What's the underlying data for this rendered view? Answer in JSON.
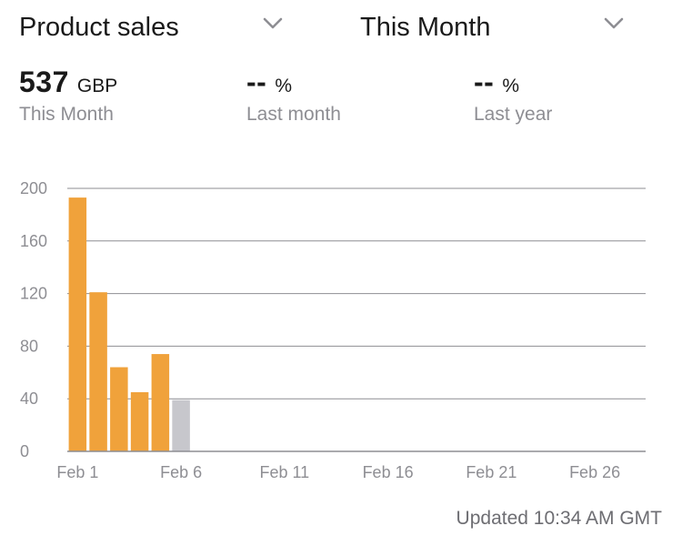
{
  "header": {
    "metric_selector": {
      "label": "Product sales",
      "icon": "chevron-down-icon"
    },
    "period_selector": {
      "label": "This Month",
      "icon": "chevron-down-icon"
    }
  },
  "summary": {
    "this_month": {
      "value": "537",
      "unit": "GBP",
      "caption": "This Month"
    },
    "last_month": {
      "value": "--",
      "unit": "%",
      "caption": "Last month"
    },
    "last_year": {
      "value": "--",
      "unit": "%",
      "caption": "Last year"
    }
  },
  "footer": {
    "updated": "Updated 10:34 AM GMT"
  },
  "colors": {
    "bar": "#f0a23b",
    "bar_current": "#c7c7cc",
    "grid": "#8e8e93",
    "text_secondary": "#8e8e93"
  },
  "chart_data": {
    "type": "bar",
    "title": "",
    "xlabel": "",
    "ylabel": "",
    "ylim": [
      0,
      200
    ],
    "y_ticks": [
      0,
      40,
      80,
      120,
      160,
      200
    ],
    "x_tick_labels": [
      {
        "day": 1,
        "label": "Feb 1"
      },
      {
        "day": 6,
        "label": "Feb 6"
      },
      {
        "day": 11,
        "label": "Feb 11"
      },
      {
        "day": 16,
        "label": "Feb 16"
      },
      {
        "day": 21,
        "label": "Feb 21"
      },
      {
        "day": 26,
        "label": "Feb 26"
      }
    ],
    "days": 28,
    "grid": true,
    "bars": [
      {
        "day": 1,
        "date": "Feb 1",
        "value": 193,
        "current": false
      },
      {
        "day": 2,
        "date": "Feb 2",
        "value": 121,
        "current": false
      },
      {
        "day": 3,
        "date": "Feb 3",
        "value": 64,
        "current": false
      },
      {
        "day": 4,
        "date": "Feb 4",
        "value": 45,
        "current": false
      },
      {
        "day": 5,
        "date": "Feb 5",
        "value": 74,
        "current": false
      },
      {
        "day": 6,
        "date": "Feb 6",
        "value": 39,
        "current": true
      }
    ]
  }
}
